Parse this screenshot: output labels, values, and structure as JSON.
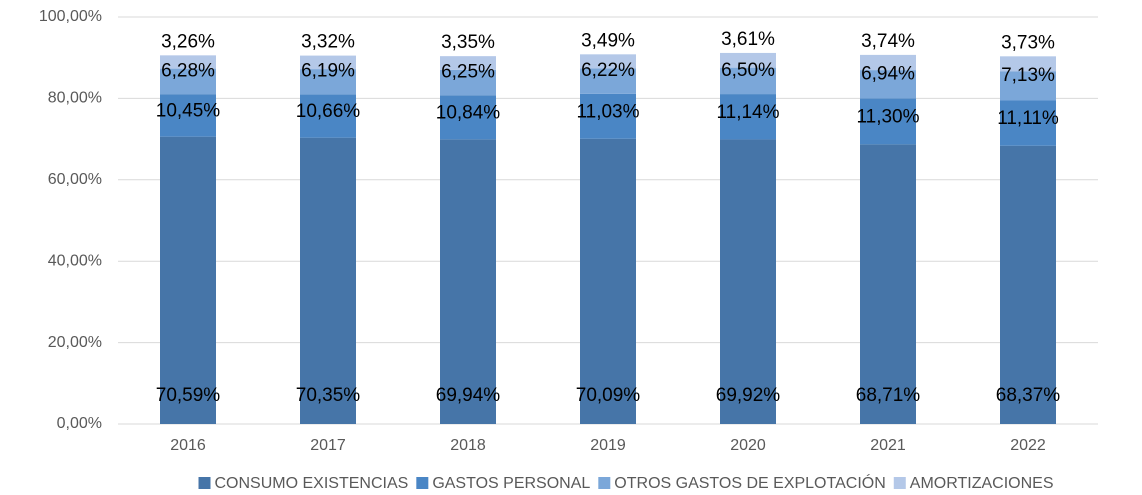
{
  "chart_data": {
    "type": "stacked_bar",
    "categories": [
      "2016",
      "2017",
      "2018",
      "2019",
      "2020",
      "2021",
      "2022"
    ],
    "series": [
      {
        "name": "CONSUMO EXISTENCIAS",
        "color": "#4675a8",
        "values": [
          70.59,
          70.35,
          69.94,
          70.09,
          69.92,
          68.71,
          68.37
        ],
        "value_labels": [
          "70,59%",
          "70,35%",
          "69,94%",
          "70,09%",
          "69,92%",
          "68,71%",
          "68,37%"
        ]
      },
      {
        "name": "GASTOS PERSONAL",
        "color": "#4a86c5",
        "values": [
          10.45,
          10.66,
          10.84,
          11.03,
          11.14,
          11.3,
          11.11
        ],
        "value_labels": [
          "10,45%",
          "10,66%",
          "10,84%",
          "11,03%",
          "11,14%",
          "11,30%",
          "11,11%"
        ]
      },
      {
        "name": "OTROS GASTOS DE EXPLOTACIÓN",
        "color": "#7ba7d9",
        "values": [
          6.28,
          6.19,
          6.25,
          6.22,
          6.5,
          6.94,
          7.13
        ],
        "value_labels": [
          "6,28%",
          "6,19%",
          "6,25%",
          "6,22%",
          "6,50%",
          "6,94%",
          "7,13%"
        ]
      },
      {
        "name": "AMORTIZACIONES",
        "color": "#b4c8e8",
        "values": [
          3.26,
          3.32,
          3.35,
          3.49,
          3.61,
          3.74,
          3.73
        ],
        "value_labels": [
          "3,26%",
          "3,32%",
          "3,35%",
          "3,49%",
          "3,61%",
          "3,74%",
          "3,73%"
        ]
      }
    ],
    "ylim": [
      0,
      100
    ],
    "yticks": [
      {
        "value": 0,
        "label": "0,00%"
      },
      {
        "value": 20,
        "label": "20,00%"
      },
      {
        "value": 40,
        "label": "40,00%"
      },
      {
        "value": 60,
        "label": "60,00%"
      },
      {
        "value": 80,
        "label": "80,00%"
      },
      {
        "value": 100,
        "label": "100,00%"
      }
    ],
    "grid": true,
    "legend": "bottom"
  }
}
